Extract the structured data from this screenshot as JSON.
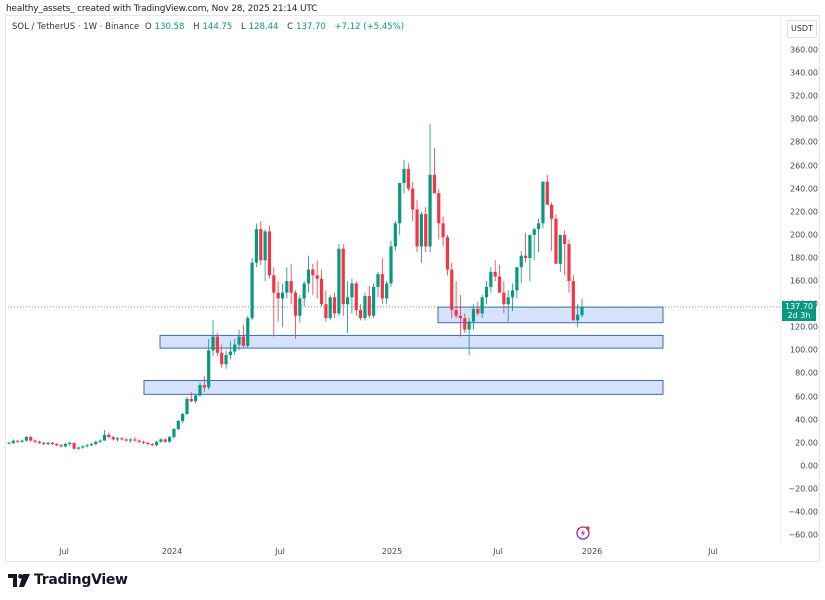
{
  "credit": "healthy_assets_ created with TradingView.com, Nov 28, 2025 21:14 UTC",
  "legend": {
    "symbol": "SOL / TetherUS · 1W · Binance",
    "open_label": "O",
    "open": "130.58",
    "high_label": "H",
    "high": "144.75",
    "low_label": "L",
    "low": "128.44",
    "close_label": "C",
    "close": "137.70",
    "change": "+7.12 (+5.45%)"
  },
  "price_axis": {
    "currency": "USDT",
    "ticks": [
      "360.00",
      "340.00",
      "320.00",
      "300.00",
      "280.00",
      "260.00",
      "240.00",
      "220.00",
      "200.00",
      "180.00",
      "160.00",
      "140.00",
      "120.00",
      "100.00",
      "80.00",
      "60.00",
      "40.00",
      "20.00",
      "0.00",
      "−20.00",
      "−40.00",
      "−60.00"
    ],
    "last_price": "137.70",
    "countdown": "2d 3h"
  },
  "time_axis": {
    "ticks": [
      {
        "label": "Jul",
        "x": 64
      },
      {
        "label": "2024",
        "x": 172
      },
      {
        "label": "Jul",
        "x": 280
      },
      {
        "label": "2025",
        "x": 392
      },
      {
        "label": "Jul",
        "x": 498
      },
      {
        "label": "2026",
        "x": 592
      },
      {
        "label": "Jul",
        "x": 713
      }
    ]
  },
  "colors": {
    "up": "#089981",
    "down": "#f23645",
    "zone_fill": "#cfdcfb",
    "zone_border": "#3d6ab5",
    "last_price_line": "#089981"
  },
  "branding": {
    "logo_text": "TradingView"
  },
  "chart_data": {
    "type": "candlestick",
    "title": "SOL / TetherUS · 1W · Binance",
    "xlabel": "",
    "ylabel": "USDT",
    "ylim": [
      -60,
      360
    ],
    "grid": false,
    "x_ticks": [
      "Jul",
      "2024",
      "Jul",
      "2025",
      "Jul",
      "2026",
      "Jul"
    ],
    "last_close": 137.7,
    "zones": [
      {
        "name": "support-zone-1",
        "from": 124,
        "to": 137.5,
        "x_start": "2025-03",
        "x_end": "2026-04"
      },
      {
        "name": "support-zone-2",
        "from": 102,
        "to": 113,
        "x_start": "2023-12",
        "x_end": "2026-04"
      },
      {
        "name": "support-zone-3",
        "from": 62,
        "to": 74,
        "x_start": "2023-11",
        "x_end": "2026-04"
      }
    ],
    "ohlc": [
      [
        20,
        21,
        19,
        20
      ],
      [
        20,
        23,
        19,
        22
      ],
      [
        22,
        22,
        20,
        21
      ],
      [
        21,
        23,
        20,
        22
      ],
      [
        22,
        26,
        21,
        25
      ],
      [
        25,
        26,
        21,
        22
      ],
      [
        22,
        23,
        20,
        21
      ],
      [
        21,
        22,
        19,
        20
      ],
      [
        20,
        21,
        18,
        19
      ],
      [
        19,
        21,
        18,
        20
      ],
      [
        20,
        21,
        18,
        19
      ],
      [
        19,
        20,
        17,
        18
      ],
      [
        18,
        19,
        16,
        17
      ],
      [
        17,
        20,
        16,
        19
      ],
      [
        19,
        21,
        17,
        20
      ],
      [
        20,
        20,
        14,
        15
      ],
      [
        15,
        17,
        14,
        16
      ],
      [
        16,
        18,
        15,
        17
      ],
      [
        17,
        19,
        16,
        18
      ],
      [
        18,
        20,
        17,
        19
      ],
      [
        19,
        22,
        18,
        21
      ],
      [
        21,
        23,
        20,
        22
      ],
      [
        22,
        31,
        22,
        27
      ],
      [
        27,
        29,
        24,
        25
      ],
      [
        25,
        26,
        22,
        23
      ],
      [
        23,
        25,
        21,
        24
      ],
      [
        24,
        25,
        22,
        23
      ],
      [
        23,
        24,
        21,
        22
      ],
      [
        22,
        24,
        20,
        23
      ],
      [
        23,
        25,
        21,
        22
      ],
      [
        22,
        23,
        20,
        21
      ],
      [
        21,
        22,
        19,
        20
      ],
      [
        20,
        21,
        18,
        19
      ],
      [
        19,
        20,
        17,
        18
      ],
      [
        18,
        22,
        17,
        21
      ],
      [
        21,
        24,
        20,
        23
      ],
      [
        23,
        24,
        20,
        21
      ],
      [
        21,
        26,
        20,
        25
      ],
      [
        25,
        33,
        24,
        32
      ],
      [
        32,
        40,
        31,
        39
      ],
      [
        39,
        46,
        37,
        45
      ],
      [
        45,
        60,
        44,
        58
      ],
      [
        58,
        64,
        55,
        56
      ],
      [
        56,
        62,
        54,
        61
      ],
      [
        61,
        72,
        60,
        70
      ],
      [
        70,
        78,
        64,
        68
      ],
      [
        68,
        110,
        66,
        100
      ],
      [
        100,
        126,
        95,
        112
      ],
      [
        112,
        115,
        95,
        98
      ],
      [
        98,
        105,
        85,
        88
      ],
      [
        88,
        100,
        84,
        96
      ],
      [
        96,
        108,
        92,
        99
      ],
      [
        99,
        110,
        96,
        105
      ],
      [
        105,
        118,
        100,
        112
      ],
      [
        112,
        122,
        103,
        104
      ],
      [
        104,
        130,
        102,
        128
      ],
      [
        128,
        180,
        126,
        176
      ],
      [
        176,
        210,
        172,
        205
      ],
      [
        205,
        212,
        174,
        178
      ],
      [
        178,
        205,
        160,
        203
      ],
      [
        203,
        208,
        162,
        165
      ],
      [
        165,
        172,
        112,
        150
      ],
      [
        150,
        160,
        125,
        145
      ],
      [
        145,
        158,
        120,
        150
      ],
      [
        150,
        172,
        145,
        160
      ],
      [
        160,
        175,
        140,
        150
      ],
      [
        150,
        152,
        110,
        130
      ],
      [
        130,
        148,
        124,
        145
      ],
      [
        145,
        160,
        138,
        158
      ],
      [
        158,
        182,
        150,
        170
      ],
      [
        170,
        175,
        148,
        165
      ],
      [
        165,
        178,
        145,
        162
      ],
      [
        162,
        170,
        138,
        140
      ],
      [
        140,
        152,
        125,
        128
      ],
      [
        128,
        148,
        126,
        146
      ],
      [
        146,
        150,
        128,
        132
      ],
      [
        132,
        192,
        130,
        188
      ],
      [
        188,
        192,
        130,
        140
      ],
      [
        140,
        160,
        115,
        146
      ],
      [
        146,
        162,
        132,
        158
      ],
      [
        158,
        160,
        130,
        135
      ],
      [
        135,
        140,
        126,
        128
      ],
      [
        128,
        150,
        126,
        147
      ],
      [
        147,
        156,
        128,
        130
      ],
      [
        130,
        158,
        128,
        155
      ],
      [
        155,
        168,
        146,
        166
      ],
      [
        166,
        180,
        140,
        145
      ],
      [
        145,
        160,
        140,
        158
      ],
      [
        158,
        195,
        155,
        190
      ],
      [
        190,
        212,
        186,
        210
      ],
      [
        210,
        228,
        200,
        245
      ],
      [
        245,
        265,
        236,
        257
      ],
      [
        257,
        262,
        238,
        240
      ],
      [
        240,
        246,
        212,
        222
      ],
      [
        222,
        230,
        185,
        190
      ],
      [
        190,
        220,
        176,
        218
      ],
      [
        218,
        224,
        185,
        190
      ],
      [
        190,
        296,
        185,
        252
      ],
      [
        252,
        275,
        236,
        236
      ],
      [
        236,
        240,
        196,
        210
      ],
      [
        210,
        216,
        190,
        198
      ],
      [
        198,
        200,
        165,
        170
      ],
      [
        170,
        176,
        128,
        135
      ],
      [
        135,
        160,
        128,
        130
      ],
      [
        130,
        148,
        112,
        128
      ],
      [
        128,
        132,
        115,
        118
      ],
      [
        118,
        128,
        96,
        125
      ],
      [
        125,
        140,
        118,
        136
      ],
      [
        136,
        142,
        130,
        132
      ],
      [
        132,
        148,
        128,
        146
      ],
      [
        146,
        160,
        140,
        155
      ],
      [
        155,
        172,
        150,
        168
      ],
      [
        168,
        178,
        160,
        164
      ],
      [
        164,
        174,
        150,
        150
      ],
      [
        150,
        160,
        132,
        140
      ],
      [
        140,
        152,
        125,
        146
      ],
      [
        146,
        158,
        134,
        152
      ],
      [
        152,
        172,
        145,
        172
      ],
      [
        172,
        186,
        158,
        182
      ],
      [
        182,
        202,
        176,
        180
      ],
      [
        180,
        196,
        160,
        200
      ],
      [
        200,
        206,
        178,
        205
      ],
      [
        205,
        214,
        185,
        210
      ],
      [
        210,
        228,
        206,
        246
      ],
      [
        246,
        252,
        228,
        226
      ],
      [
        226,
        228,
        186,
        214
      ],
      [
        214,
        218,
        186,
        175
      ],
      [
        175,
        200,
        168,
        200
      ],
      [
        200,
        204,
        165,
        192
      ],
      [
        192,
        196,
        150,
        160
      ],
      [
        160,
        165,
        128,
        126
      ],
      [
        126,
        140,
        120,
        131
      ],
      [
        130.58,
        144.75,
        128.44,
        137.7
      ]
    ]
  }
}
